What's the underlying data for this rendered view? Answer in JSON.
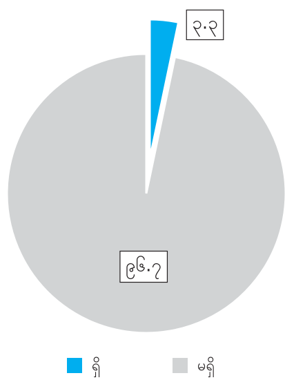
{
  "chart_data": {
    "type": "pie",
    "categories": [
      "ရှိ",
      "မရှိ"
    ],
    "values": [
      3.3,
      96.7
    ],
    "value_labels": [
      "၃.၃",
      "၉၆.၇"
    ],
    "colors": [
      "#00aeef",
      "#d1d3d4"
    ],
    "legend": "bottom"
  }
}
